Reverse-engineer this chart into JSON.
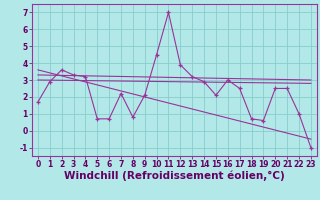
{
  "xlabel": "Windchill (Refroidissement éolien,°C)",
  "ylabel": "",
  "background_color": "#b3e8e8",
  "grid_color": "#88cccc",
  "line_color": "#993399",
  "x_hours": [
    0,
    1,
    2,
    3,
    4,
    5,
    6,
    7,
    8,
    9,
    10,
    11,
    12,
    13,
    14,
    15,
    16,
    17,
    18,
    19,
    20,
    21,
    22,
    23
  ],
  "y_windchill": [
    1.7,
    2.9,
    3.6,
    3.3,
    3.2,
    0.7,
    0.7,
    2.2,
    0.8,
    2.1,
    4.5,
    7.0,
    3.9,
    3.2,
    2.9,
    2.1,
    3.0,
    2.5,
    0.7,
    0.6,
    2.5,
    2.5,
    1.0,
    -1.0
  ],
  "trend1_x": [
    0,
    23
  ],
  "trend1_y": [
    3.3,
    3.0
  ],
  "trend2_x": [
    0,
    23
  ],
  "trend2_y": [
    3.6,
    -0.5
  ],
  "trend3_x": [
    0,
    23
  ],
  "trend3_y": [
    3.0,
    2.8
  ],
  "ylim": [
    -1.5,
    7.5
  ],
  "xlim": [
    -0.5,
    23.5
  ],
  "yticks": [
    -1,
    0,
    1,
    2,
    3,
    4,
    5,
    6,
    7
  ],
  "xticks": [
    0,
    1,
    2,
    3,
    4,
    5,
    6,
    7,
    8,
    9,
    10,
    11,
    12,
    13,
    14,
    15,
    16,
    17,
    18,
    19,
    20,
    21,
    22,
    23
  ],
  "tick_fontsize": 5.5,
  "xlabel_fontsize": 7.5
}
